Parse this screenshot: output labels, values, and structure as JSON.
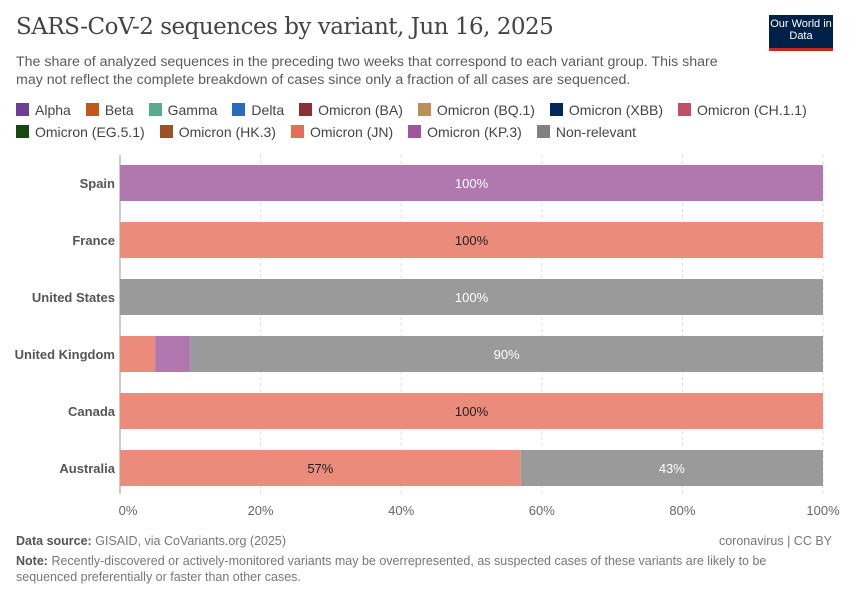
{
  "header": {
    "title": "SARS-CoV-2 sequences by variant, Jun 16, 2025",
    "subtitle": "The share of analyzed sequences in the preceding two weeks that correspond to each variant group. This share may not reflect the complete breakdown of cases since only a fraction of all cases are sequenced.",
    "logo": "Our World in Data"
  },
  "chart_data": {
    "type": "bar",
    "orientation": "horizontal",
    "stacked": true,
    "categories": [
      "Spain",
      "France",
      "United States",
      "United Kingdom",
      "Canada",
      "Australia"
    ],
    "legend": [
      {
        "name": "Alpha",
        "color": "#6d3e91"
      },
      {
        "name": "Beta",
        "color": "#c05917"
      },
      {
        "name": "Gamma",
        "color": "#58ac8c"
      },
      {
        "name": "Delta",
        "color": "#286bbb"
      },
      {
        "name": "Omicron (BA)",
        "color": "#883039"
      },
      {
        "name": "Omicron (BQ.1)",
        "color": "#bc8e5a"
      },
      {
        "name": "Omicron (XBB)",
        "color": "#00295b"
      },
      {
        "name": "Omicron (CH.1.1)",
        "color": "#c15065"
      },
      {
        "name": "Omicron (EG.5.1)",
        "color": "#18470f"
      },
      {
        "name": "Omicron (HK.3)",
        "color": "#9a5129"
      },
      {
        "name": "Omicron (JN)",
        "color": "#e56e5a"
      },
      {
        "name": "Omicron (KP.3)",
        "color": "#a2559c"
      },
      {
        "name": "Non-relevant",
        "color": "#818181"
      }
    ],
    "series": [
      {
        "name": "Omicron (JN)",
        "values": [
          0,
          100,
          0,
          5,
          100,
          57
        ],
        "color": "#ea8b7b"
      },
      {
        "name": "Omicron (KP.3)",
        "values": [
          100,
          0,
          0,
          5,
          0,
          0
        ],
        "color": "#b178b0"
      },
      {
        "name": "Non-relevant",
        "values": [
          0,
          0,
          100,
          90,
          0,
          43
        ],
        "color": "#9a9a9a"
      }
    ],
    "data_labels": [
      [
        "",
        "100%",
        ""
      ],
      [
        "100%",
        "",
        ""
      ],
      [
        "",
        "",
        "100%"
      ],
      [
        "",
        "",
        "90%"
      ],
      [
        "100%",
        "",
        ""
      ],
      [
        "57%",
        "",
        "43%"
      ]
    ],
    "xlim": [
      0,
      100
    ],
    "xticks": [
      "0%",
      "20%",
      "40%",
      "60%",
      "80%",
      "100%"
    ],
    "grid": true
  },
  "footer": {
    "source_label": "Data source:",
    "source": "GISAID, via CoVariants.org (2025)",
    "license": "coronavirus | CC BY",
    "note_label": "Note:",
    "note": "Recently-discovered or actively-monitored variants may be overrepresented, as suspected cases of these variants are likely to be sequenced preferentially or faster than other cases."
  }
}
